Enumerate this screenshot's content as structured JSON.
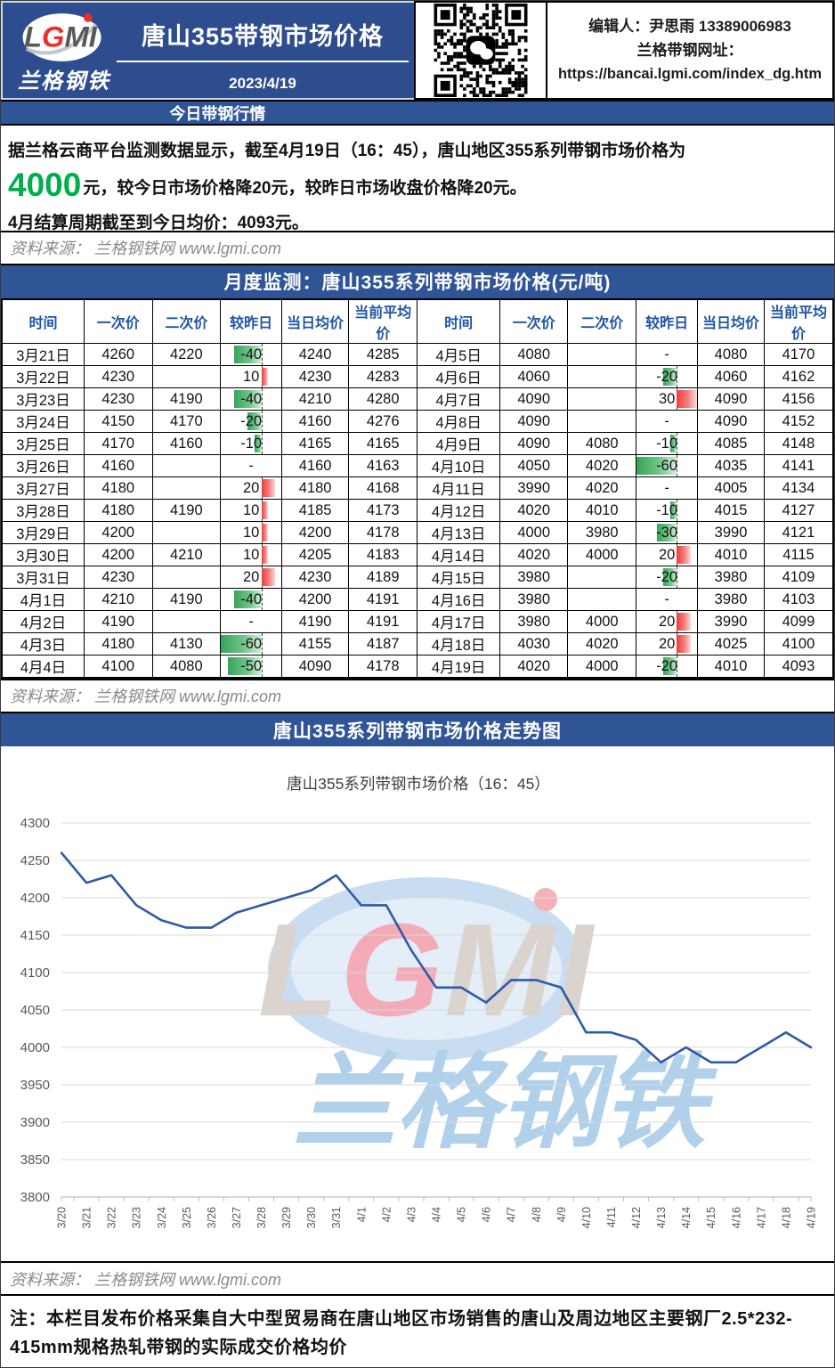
{
  "header": {
    "logo_text": "LGMI",
    "logo_subtext": "兰格钢铁",
    "title": "唐山355带钢市场价格",
    "date": "2023/4/19",
    "editor_line": "编辑人：尹思雨 13389006983",
    "site_label": "兰格带钢网址：",
    "site_url": "https://bancai.lgmi.com/index_dg.htm"
  },
  "today": {
    "bar_label": "今日带钢行情",
    "line1": "据兰格云商平台监测数据显示，截至4月19日（16：45），唐山地区355系列带钢市场价格为",
    "price": "4000",
    "line2_rest": "元，较今日市场价格降20元，较昨日市场收盘价格降20元。",
    "line3": "4月结算周期截至到今日均价：4093元。"
  },
  "source_note": "资料来源： 兰格钢铁网 www.lgmi.com",
  "table": {
    "title": "月度监测：唐山355系列带钢市场价格(元/吨)",
    "columns": [
      "时间",
      "一次价",
      "二次价",
      "较昨日",
      "当日均价",
      "当前平均价"
    ],
    "rows_left": [
      {
        "date": "3月21日",
        "price1": "4260",
        "price2": "4220",
        "change": "-40",
        "day_avg": "4240",
        "period_avg": "4285"
      },
      {
        "date": "3月22日",
        "price1": "4230",
        "price2": "",
        "change": "10",
        "day_avg": "4230",
        "period_avg": "4283"
      },
      {
        "date": "3月23日",
        "price1": "4230",
        "price2": "4190",
        "change": "-40",
        "day_avg": "4210",
        "period_avg": "4280"
      },
      {
        "date": "3月24日",
        "price1": "4150",
        "price2": "4170",
        "change": "-20",
        "day_avg": "4160",
        "period_avg": "4276"
      },
      {
        "date": "3月25日",
        "price1": "4170",
        "price2": "4160",
        "change": "-10",
        "day_avg": "4165",
        "period_avg": "4165"
      },
      {
        "date": "3月26日",
        "price1": "4160",
        "price2": "",
        "change": "-",
        "day_avg": "4160",
        "period_avg": "4163"
      },
      {
        "date": "3月27日",
        "price1": "4180",
        "price2": "",
        "change": "20",
        "day_avg": "4180",
        "period_avg": "4168"
      },
      {
        "date": "3月28日",
        "price1": "4180",
        "price2": "4190",
        "change": "10",
        "day_avg": "4185",
        "period_avg": "4173"
      },
      {
        "date": "3月29日",
        "price1": "4200",
        "price2": "",
        "change": "10",
        "day_avg": "4200",
        "period_avg": "4178"
      },
      {
        "date": "3月30日",
        "price1": "4200",
        "price2": "4210",
        "change": "10",
        "day_avg": "4205",
        "period_avg": "4183"
      },
      {
        "date": "3月31日",
        "price1": "4230",
        "price2": "",
        "change": "20",
        "day_avg": "4230",
        "period_avg": "4189"
      },
      {
        "date": "4月1日",
        "price1": "4210",
        "price2": "4190",
        "change": "-40",
        "day_avg": "4200",
        "period_avg": "4191"
      },
      {
        "date": "4月2日",
        "price1": "4190",
        "price2": "",
        "change": "-",
        "day_avg": "4190",
        "period_avg": "4191"
      },
      {
        "date": "4月3日",
        "price1": "4180",
        "price2": "4130",
        "change": "-60",
        "day_avg": "4155",
        "period_avg": "4187"
      },
      {
        "date": "4月4日",
        "price1": "4100",
        "price2": "4080",
        "change": "-50",
        "day_avg": "4090",
        "period_avg": "4178"
      }
    ],
    "rows_right": [
      {
        "date": "4月5日",
        "price1": "4080",
        "price2": "",
        "change": "-",
        "day_avg": "4080",
        "period_avg": "4170"
      },
      {
        "date": "4月6日",
        "price1": "4060",
        "price2": "",
        "change": "-20",
        "day_avg": "4060",
        "period_avg": "4162"
      },
      {
        "date": "4月7日",
        "price1": "4090",
        "price2": "",
        "change": "30",
        "day_avg": "4090",
        "period_avg": "4156"
      },
      {
        "date": "4月8日",
        "price1": "4090",
        "price2": "",
        "change": "-",
        "day_avg": "4090",
        "period_avg": "4152"
      },
      {
        "date": "4月9日",
        "price1": "4090",
        "price2": "4080",
        "change": "-10",
        "day_avg": "4085",
        "period_avg": "4148"
      },
      {
        "date": "4月10日",
        "price1": "4050",
        "price2": "4020",
        "change": "-60",
        "day_avg": "4035",
        "period_avg": "4141"
      },
      {
        "date": "4月11日",
        "price1": "3990",
        "price2": "4020",
        "change": "-",
        "day_avg": "4005",
        "period_avg": "4134"
      },
      {
        "date": "4月12日",
        "price1": "4020",
        "price2": "4010",
        "change": "-10",
        "day_avg": "4015",
        "period_avg": "4127"
      },
      {
        "date": "4月13日",
        "price1": "4000",
        "price2": "3980",
        "change": "-30",
        "day_avg": "3990",
        "period_avg": "4121"
      },
      {
        "date": "4月14日",
        "price1": "4020",
        "price2": "4000",
        "change": "20",
        "day_avg": "4010",
        "period_avg": "4115"
      },
      {
        "date": "4月15日",
        "price1": "3980",
        "price2": "",
        "change": "-20",
        "day_avg": "3980",
        "period_avg": "4109"
      },
      {
        "date": "4月16日",
        "price1": "3980",
        "price2": "",
        "change": "-",
        "day_avg": "3980",
        "period_avg": "4103"
      },
      {
        "date": "4月17日",
        "price1": "3980",
        "price2": "4000",
        "change": "20",
        "day_avg": "3990",
        "period_avg": "4099"
      },
      {
        "date": "4月18日",
        "price1": "4030",
        "price2": "4020",
        "change": "20",
        "day_avg": "4025",
        "period_avg": "4100"
      },
      {
        "date": "4月19日",
        "price1": "4020",
        "price2": "4000",
        "change": "-20",
        "day_avg": "4010",
        "period_avg": "4093"
      }
    ]
  },
  "chart_section": {
    "bar_label": "唐山355系列带钢市场价格走势图"
  },
  "chart_data": {
    "type": "line",
    "title": "唐山355系列带钢市场价格（16：45）",
    "x": [
      "3/20",
      "3/21",
      "3/22",
      "3/23",
      "3/24",
      "3/25",
      "3/26",
      "3/27",
      "3/28",
      "3/29",
      "3/30",
      "3/31",
      "4/1",
      "4/2",
      "4/3",
      "4/4",
      "4/5",
      "4/6",
      "4/7",
      "4/8",
      "4/9",
      "4/10",
      "4/11",
      "4/12",
      "4/13",
      "4/14",
      "4/15",
      "4/16",
      "4/17",
      "4/18",
      "4/19"
    ],
    "values": [
      4260,
      4220,
      4230,
      4190,
      4170,
      4160,
      4160,
      4180,
      4190,
      4200,
      4210,
      4230,
      4190,
      4190,
      4130,
      4080,
      4080,
      4060,
      4090,
      4090,
      4080,
      4020,
      4020,
      4010,
      3980,
      4000,
      3980,
      3980,
      4000,
      4020,
      4000
    ],
    "ylim": [
      3800,
      4300
    ],
    "ytick_step": 50,
    "grid": true,
    "legend": "none",
    "line_color": "#2f5aa8",
    "watermark": {
      "logo": "LGMI",
      "text": "兰格钢铁"
    }
  },
  "note": "注：本栏目发布价格采集自大中型贸易商在唐山地区市场销售的唐山及周边地区主要钢厂2.5*232-415mm规格热轧带钢的实际成交价格均价",
  "colors": {
    "header_navy": "#2d4d8e",
    "section_bar_blue": "#2f5597",
    "price_green": "#00ae4d",
    "bar_negative_green": "#36a457",
    "bar_positive_red": "#ee3b3b",
    "chart_line": "#2f5aa8"
  }
}
